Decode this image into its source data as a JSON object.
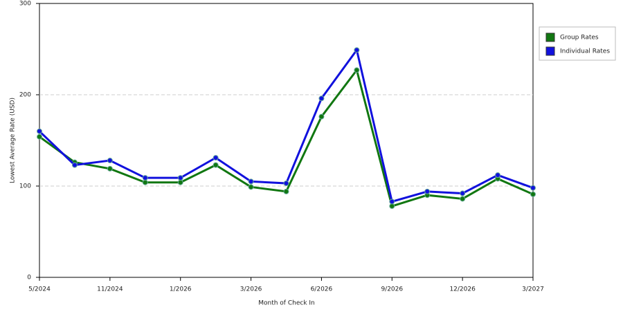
{
  "chart_data": {
    "type": "line",
    "x_label": "Month of Check In",
    "y_label": "Lowest Average Rate (USD)",
    "categories": [
      "5/2024",
      null,
      "11/2024",
      null,
      "1/2026",
      null,
      "3/2026",
      null,
      "6/2026",
      null,
      "9/2026",
      null,
      "12/2026",
      null,
      "3/2027"
    ],
    "series": [
      {
        "name": "Group Rates",
        "color": "#117711",
        "values": [
          154,
          126,
          119,
          104,
          104,
          123,
          99,
          94,
          176,
          227,
          78,
          90,
          86,
          108,
          91
        ]
      },
      {
        "name": "Individual Rates",
        "color": "#1111dd",
        "values": [
          160,
          123,
          128,
          109,
          109,
          131,
          105,
          103,
          196,
          249,
          83,
          94,
          92,
          112,
          98
        ]
      }
    ],
    "ylim": [
      0,
      300
    ],
    "yticks": [
      0,
      100,
      200,
      300
    ],
    "grid": true,
    "legend": "right"
  }
}
